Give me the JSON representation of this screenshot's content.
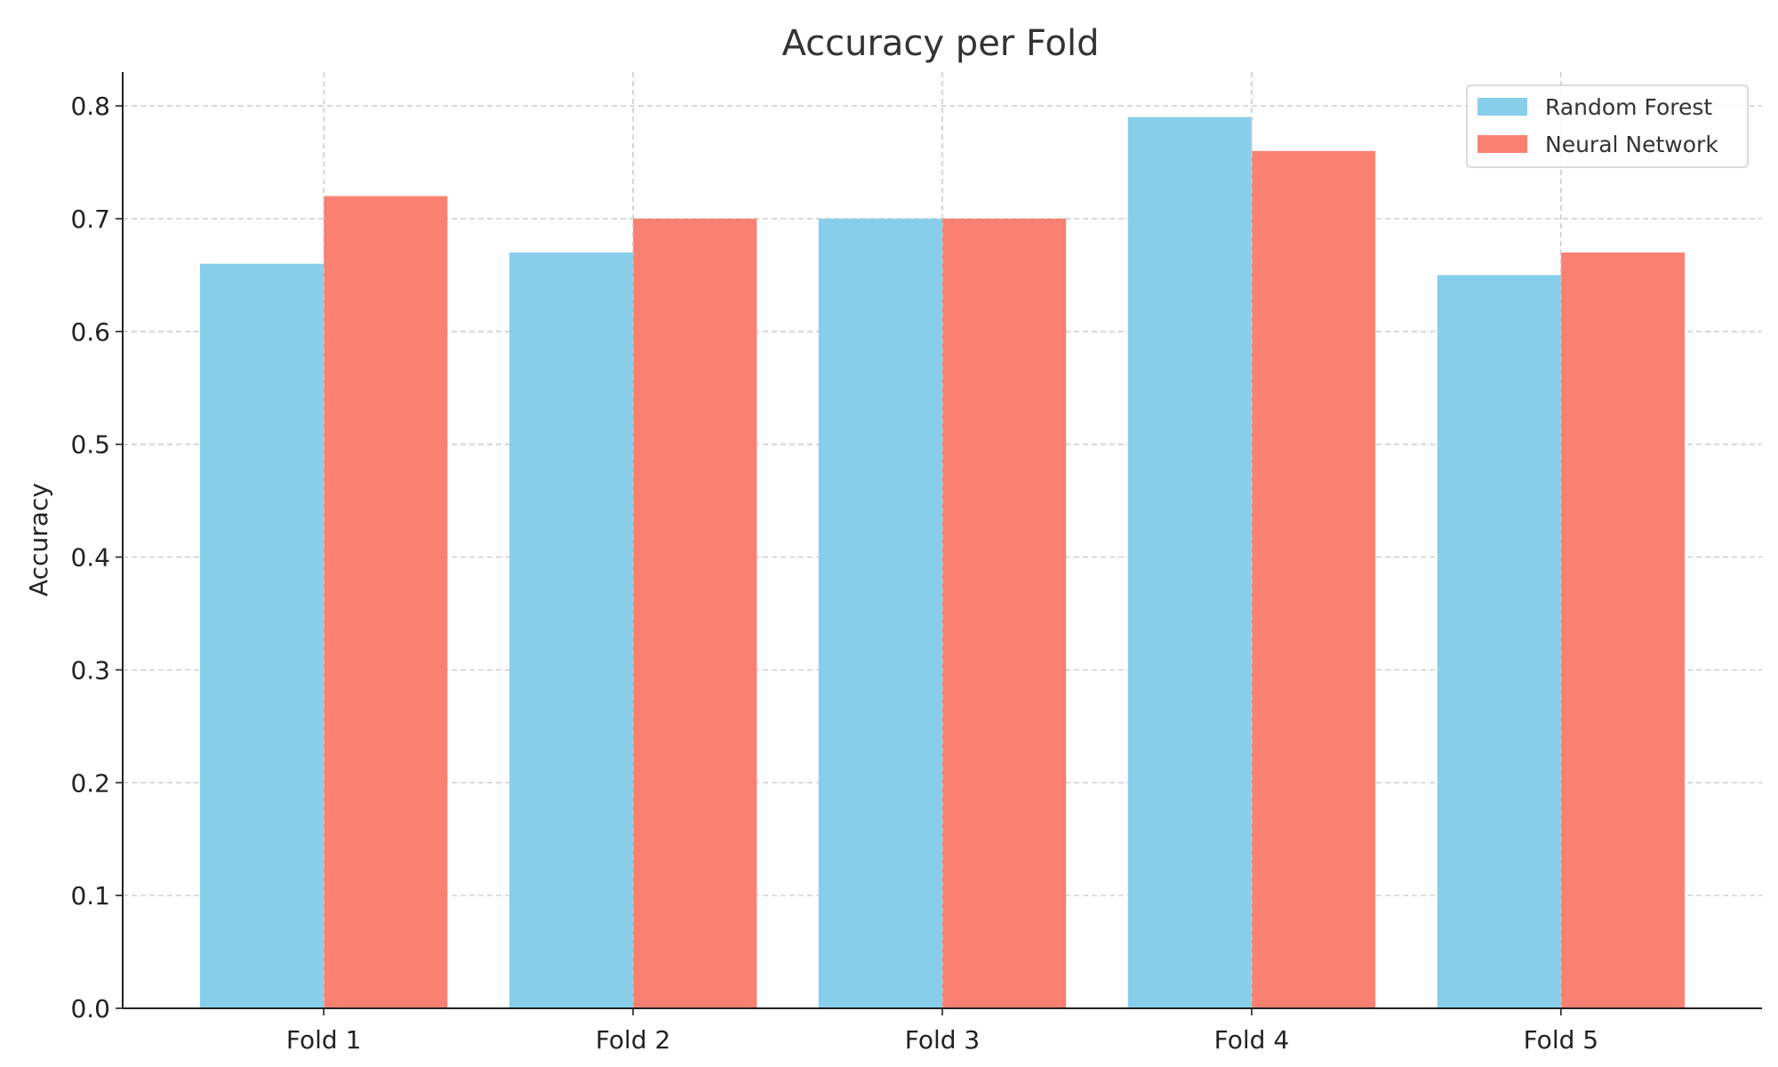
{
  "chart_data": {
    "type": "bar",
    "title": "Accuracy per Fold",
    "xlabel": "",
    "ylabel": "Accuracy",
    "categories": [
      "Fold 1",
      "Fold 2",
      "Fold 3",
      "Fold 4",
      "Fold 5"
    ],
    "series": [
      {
        "name": "Random Forest",
        "color": "#87CEEB",
        "values": [
          0.66,
          0.67,
          0.7,
          0.79,
          0.65
        ]
      },
      {
        "name": "Neural Network",
        "color": "#FA8072",
        "values": [
          0.72,
          0.7,
          0.7,
          0.76,
          0.67
        ]
      }
    ],
    "ylim": [
      0,
      0.83
    ],
    "yticks": [
      0.0,
      0.1,
      0.2,
      0.3,
      0.4,
      0.5,
      0.6,
      0.7,
      0.8
    ],
    "ytick_labels": [
      "0.0",
      "0.1",
      "0.2",
      "0.3",
      "0.4",
      "0.5",
      "0.6",
      "0.7",
      "0.8"
    ],
    "grid": true,
    "legend_position": "top-right"
  }
}
